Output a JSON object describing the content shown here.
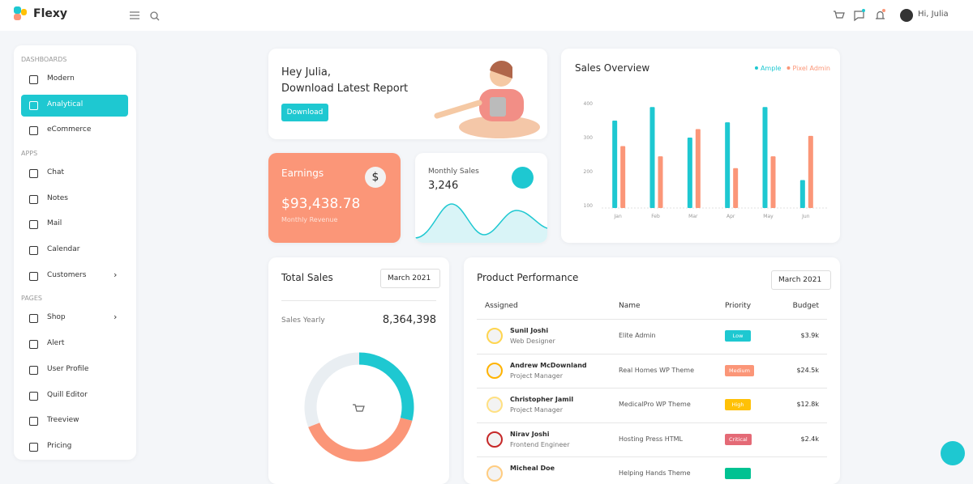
{
  "header": {
    "brand": "Flexy",
    "greeting": "Hi, Julia"
  },
  "sidebar": {
    "sections": [
      {
        "title": "DASHBOARDS",
        "items": [
          {
            "label": "Modern"
          },
          {
            "label": "Analytical",
            "active": true
          },
          {
            "label": "eCommerce"
          }
        ]
      },
      {
        "title": "APPS",
        "items": [
          {
            "label": "Chat"
          },
          {
            "label": "Notes"
          },
          {
            "label": "Mail"
          },
          {
            "label": "Calendar"
          },
          {
            "label": "Customers",
            "submenu": true
          }
        ]
      },
      {
        "title": "PAGES",
        "items": [
          {
            "label": "Shop",
            "submenu": true
          },
          {
            "label": "Alert"
          },
          {
            "label": "User Profile"
          },
          {
            "label": "Quill Editor"
          },
          {
            "label": "Treeview"
          },
          {
            "label": "Pricing"
          }
        ]
      }
    ]
  },
  "welcome": {
    "greeting": "Hey Julia,",
    "message": "Download Latest Report",
    "button": "Download"
  },
  "earnings": {
    "title": "Earnings",
    "amount": "$93,438.78",
    "caption": "Monthly Revenue"
  },
  "monthly_sales": {
    "title": "Monthly Sales",
    "value": "3,246"
  },
  "total_sales": {
    "title": "Total Sales",
    "filter": "March 2021",
    "label": "Sales Yearly",
    "value": "8,364,398"
  },
  "chart_data": [
    {
      "type": "bar",
      "title": "Sales Overview",
      "categories": [
        "Jan",
        "Feb",
        "Mar",
        "Apr",
        "May",
        "Jun"
      ],
      "series": [
        {
          "name": "Ample",
          "color": "#1ec8d1",
          "values": [
            350,
            390,
            300,
            345,
            390,
            175
          ]
        },
        {
          "name": "Pixel Admin",
          "color": "#fb9678",
          "values": [
            275,
            245,
            325,
            210,
            245,
            305
          ]
        }
      ],
      "ylim": [
        100,
        400
      ],
      "yticks": [
        100,
        200,
        300,
        400
      ],
      "grid": false,
      "legend": "top-right"
    },
    {
      "type": "donut",
      "values": [
        29,
        40,
        31
      ],
      "colors": [
        "#1ec8d1",
        "#fb9678",
        "#e9eef2"
      ]
    }
  ],
  "product_performance": {
    "title": "Product Performance",
    "filter": "March 2021",
    "columns": [
      "Assigned",
      "Name",
      "Priority",
      "Budget"
    ],
    "rows": [
      {
        "name": "Sunil Joshi",
        "role": "Web Designer",
        "project": "Elite Admin",
        "priority": "Low",
        "color": "#1ec8d1",
        "budget": "$3.9k"
      },
      {
        "name": "Andrew McDownland",
        "role": "Project Manager",
        "project": "Real Homes WP Theme",
        "priority": "Medium",
        "color": "#fb9678",
        "budget": "$24.5k"
      },
      {
        "name": "Christopher Jamil",
        "role": "Project Manager",
        "project": "MedicalPro WP Theme",
        "priority": "High",
        "color": "#ffc107",
        "budget": "$12.8k"
      },
      {
        "name": "Nirav Joshi",
        "role": "Frontend Engineer",
        "project": "Hosting Press HTML",
        "priority": "Critical",
        "color": "#e46a76",
        "budget": "$2.4k"
      },
      {
        "name": "Micheal Doe",
        "project": "Helping Hands Theme",
        "color": "#00c292"
      }
    ]
  }
}
